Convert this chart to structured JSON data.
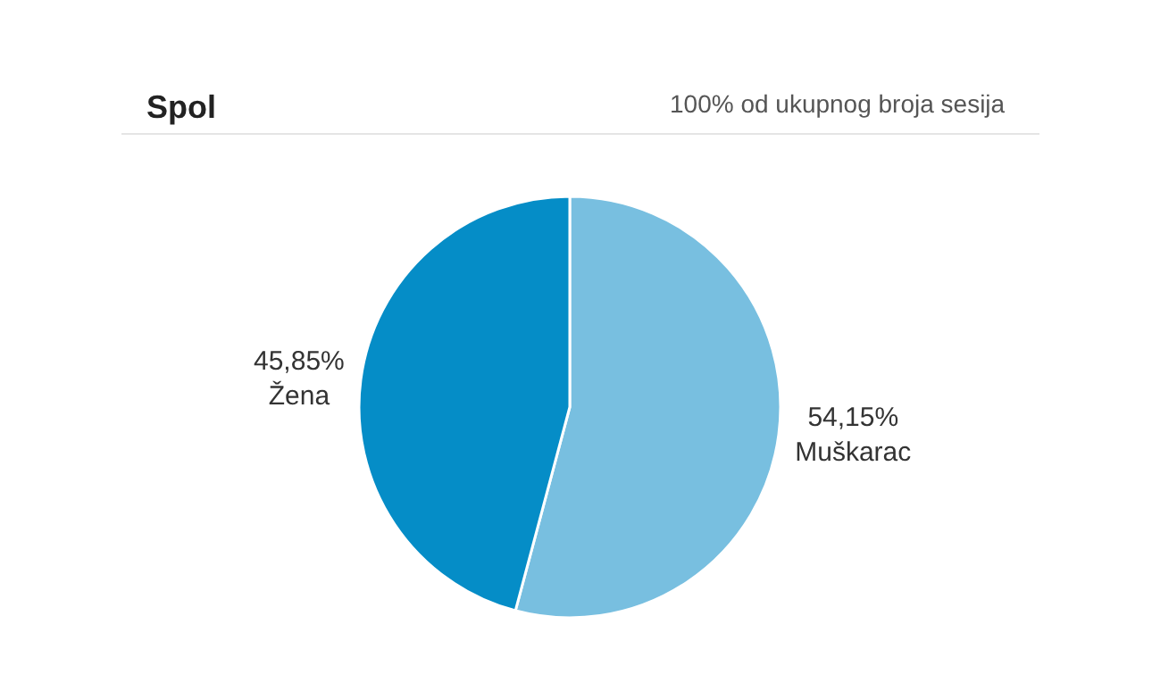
{
  "chart_data": {
    "type": "pie",
    "title": "Spol",
    "subtitle": "100% od ukupnog broja sesija",
    "categories": [
      "Muškarac",
      "Žena"
    ],
    "values": [
      54.15,
      45.85
    ],
    "colors": [
      "#78bfe0",
      "#058dc7"
    ],
    "value_labels": [
      "54,15%",
      "45,85%"
    ],
    "legend": false
  }
}
